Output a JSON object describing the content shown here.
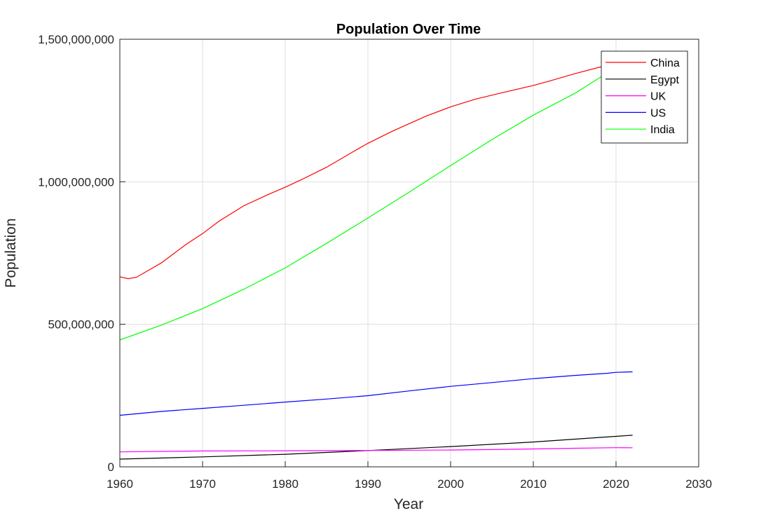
{
  "chart_data": {
    "type": "line",
    "title": "Population Over Time",
    "xlabel": "Year",
    "ylabel": "Population",
    "xlim": [
      1960,
      2030
    ],
    "ylim": [
      0,
      1500000000
    ],
    "xticks": [
      1960,
      1970,
      1980,
      1990,
      2000,
      2010,
      2020,
      2030
    ],
    "xtick_labels": [
      "1960",
      "1970",
      "1980",
      "1990",
      "2000",
      "2010",
      "2020",
      "2030"
    ],
    "yticks": [
      0,
      500000000,
      1000000000,
      1500000000
    ],
    "ytick_labels": [
      "0",
      "500,000,000",
      "1,000,000,000",
      "1,500,000,000"
    ],
    "grid": true,
    "legend_position": "top-right",
    "series": [
      {
        "name": "China",
        "color": "#ff0000",
        "x": [
          1960,
          1961,
          1962,
          1965,
          1968,
          1970,
          1972,
          1975,
          1978,
          1980,
          1982,
          1985,
          1988,
          1990,
          1993,
          1997,
          2000,
          2003,
          2006,
          2010,
          2012,
          2015,
          2018,
          2020,
          2021,
          2022
        ],
        "y": [
          667000000,
          660000000,
          665000000,
          715000000,
          780000000,
          818000000,
          862000000,
          916000000,
          956000000,
          981000000,
          1008000000,
          1051000000,
          1102000000,
          1135000000,
          1178000000,
          1230000000,
          1263000000,
          1290000000,
          1311000000,
          1338000000,
          1354000000,
          1379000000,
          1402000000,
          1411000000,
          1412000000,
          1412000000
        ]
      },
      {
        "name": "Egypt",
        "color": "#000000",
        "x": [
          1960,
          1970,
          1980,
          1990,
          2000,
          2010,
          2020,
          2022
        ],
        "y": [
          27000000,
          35000000,
          44000000,
          57000000,
          71000000,
          87000000,
          107000000,
          111000000
        ]
      },
      {
        "name": "UK",
        "color": "#ff00ff",
        "x": [
          1960,
          1970,
          1980,
          1990,
          2000,
          2005,
          2010,
          2015,
          2020,
          2022
        ],
        "y": [
          52400000,
          55600000,
          56300000,
          57200000,
          58900000,
          60400000,
          62800000,
          65100000,
          67100000,
          66900000
        ]
      },
      {
        "name": "US",
        "color": "#0000ff",
        "x": [
          1960,
          1965,
          1970,
          1975,
          1980,
          1985,
          1990,
          1995,
          2000,
          2005,
          2010,
          2015,
          2019,
          2020,
          2022
        ],
        "y": [
          180700000,
          194300000,
          205100000,
          216000000,
          227200000,
          237900000,
          249600000,
          266300000,
          282200000,
          295500000,
          309300000,
          320700000,
          328200000,
          331500000,
          333300000
        ]
      },
      {
        "name": "India",
        "color": "#00ff00",
        "x": [
          1960,
          1965,
          1970,
          1975,
          1980,
          1985,
          1990,
          1995,
          2000,
          2005,
          2010,
          2015,
          2019
        ],
        "y": [
          445000000,
          497000000,
          555000000,
          623000000,
          698000000,
          784000000,
          873000000,
          964000000,
          1057000000,
          1148000000,
          1234000000,
          1310000000,
          1383000000
        ]
      }
    ]
  }
}
